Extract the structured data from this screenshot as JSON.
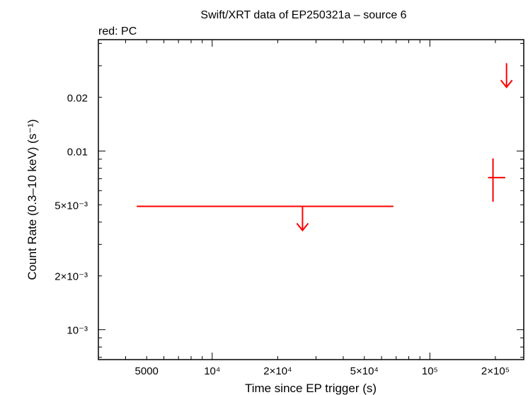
{
  "chart_data": {
    "type": "scatter",
    "title": "Swift/XRT data of EP250321a – source 6",
    "subtitle": "red: PC",
    "xlabel": "Time since EP trigger (s)",
    "ylabel": "Count Rate (0.3–10 keV) (s⁻¹)",
    "x_scale": "log",
    "y_scale": "log",
    "xlim": [
      3000,
      270000
    ],
    "ylim": [
      0.00068,
      0.042
    ],
    "x_ticks": [
      {
        "value": 5000,
        "label": "5000"
      },
      {
        "value": 10000,
        "label": "10⁴"
      },
      {
        "value": 20000,
        "label": "2×10⁴"
      },
      {
        "value": 50000,
        "label": "5×10⁴"
      },
      {
        "value": 100000,
        "label": "10⁵"
      },
      {
        "value": 200000,
        "label": "2×10⁵"
      }
    ],
    "y_ticks": [
      {
        "value": 0.001,
        "label": "10⁻³"
      },
      {
        "value": 0.002,
        "label": "2×10⁻³"
      },
      {
        "value": 0.005,
        "label": "5×10⁻³"
      },
      {
        "value": 0.01,
        "label": "0.01"
      },
      {
        "value": 0.02,
        "label": "0.02"
      }
    ],
    "color": "#ff0000",
    "series": [
      {
        "mode": "PC",
        "color": "#ff0000",
        "points": [
          {
            "x": 26000,
            "x_low": 4500,
            "x_high": 68000,
            "y": 0.0049,
            "upper_limit": true
          },
          {
            "x": 195000,
            "x_low": 185000,
            "x_high": 222000,
            "y": 0.0071,
            "y_low": 0.0052,
            "y_high": 0.0091,
            "upper_limit": false
          },
          {
            "x": 225000,
            "x_low": 225000,
            "x_high": 225000,
            "y": 0.031,
            "upper_limit": true
          }
        ]
      }
    ]
  }
}
